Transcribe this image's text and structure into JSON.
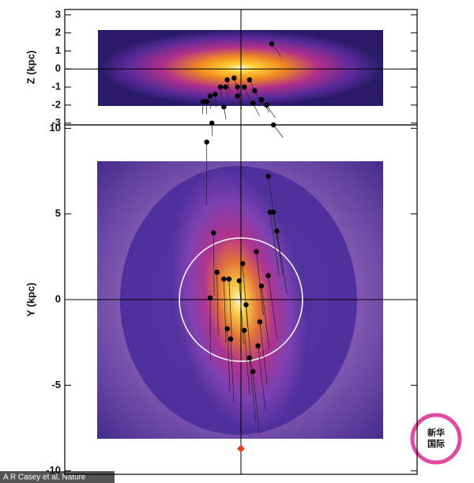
{
  "chart_data": [
    {
      "type": "scatter",
      "y_label": "Z (kpc)",
      "xlim": [
        -10.3,
        10.3
      ],
      "ylim": [
        -3.1,
        3.3
      ],
      "yticks": [
        3,
        2,
        1,
        0,
        -1,
        -2,
        -3
      ],
      "color": "#000000",
      "x": [
        1.8,
        -0.4,
        -0.8,
        0.5,
        -1.2,
        -0.9,
        -0.2,
        0.2,
        0.8,
        -1.5,
        -0.2,
        -1.8,
        -2.0,
        -2.2,
        1.2,
        0.7,
        1.5,
        -1.0,
        -1.7,
        1.9
      ],
      "values": [
        1.4,
        -0.5,
        -0.6,
        -0.6,
        -1.0,
        -1.0,
        -1.0,
        -1.0,
        -1.2,
        -1.4,
        -1.5,
        -1.5,
        -1.8,
        -1.8,
        -1.7,
        -1.9,
        -2.0,
        -2.1,
        -3.0,
        -3.1
      ]
    },
    {
      "type": "scatter",
      "y_label": "Y (kpc)",
      "xlim": [
        -10.3,
        10.3
      ],
      "ylim": [
        -10.2,
        10.2
      ],
      "yticks": [
        10,
        5,
        0,
        -5,
        -10
      ],
      "color": "#000000",
      "x": [
        -2.0,
        -1.6,
        1.6,
        1.7,
        1.9,
        2.1,
        -1.4,
        -1.0,
        -0.7,
        -0.1,
        0.1,
        0.9,
        1.6,
        1.2,
        -1.8,
        0.3,
        -0.8,
        -0.6,
        0.2,
        1.1,
        1.0,
        0.5,
        0.7
      ],
      "values": [
        9.2,
        3.9,
        7.2,
        5.1,
        5.1,
        4.0,
        1.6,
        1.2,
        1.2,
        1.1,
        2.1,
        2.8,
        1.4,
        0.8,
        0.1,
        -0.3,
        -1.7,
        -2.3,
        -1.8,
        -1.3,
        -2.7,
        -3.4,
        -4.2
      ],
      "ring_radius": 3.6,
      "sun": {
        "x": 0,
        "y": -8.7,
        "color": "#e0402a"
      }
    }
  ],
  "credit": "A R Casey et al, Nature",
  "logo": {
    "line1": "新华",
    "line2": "国际"
  }
}
